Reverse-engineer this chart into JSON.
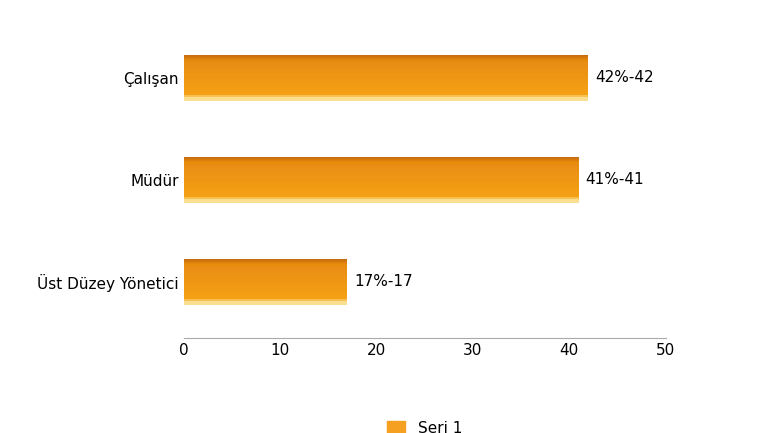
{
  "categories": [
    "Üst Düzey Yönetici",
    "Müdür",
    "Çalışan"
  ],
  "values": [
    17,
    41,
    42
  ],
  "labels": [
    "17%-17",
    "41%-41",
    "42%-42"
  ],
  "bar_color": "#F5A020",
  "bar_color_light": "#FBCF6F",
  "bar_color_dark": "#D4820A",
  "xlim": [
    0,
    50
  ],
  "xticks": [
    0,
    10,
    20,
    30,
    40,
    50
  ],
  "legend_label": "Seri 1",
  "legend_color": "#F5A020",
  "background_color": "#FFFFFF",
  "bar_height": 0.45,
  "label_fontsize": 11,
  "tick_fontsize": 11,
  "legend_fontsize": 11
}
